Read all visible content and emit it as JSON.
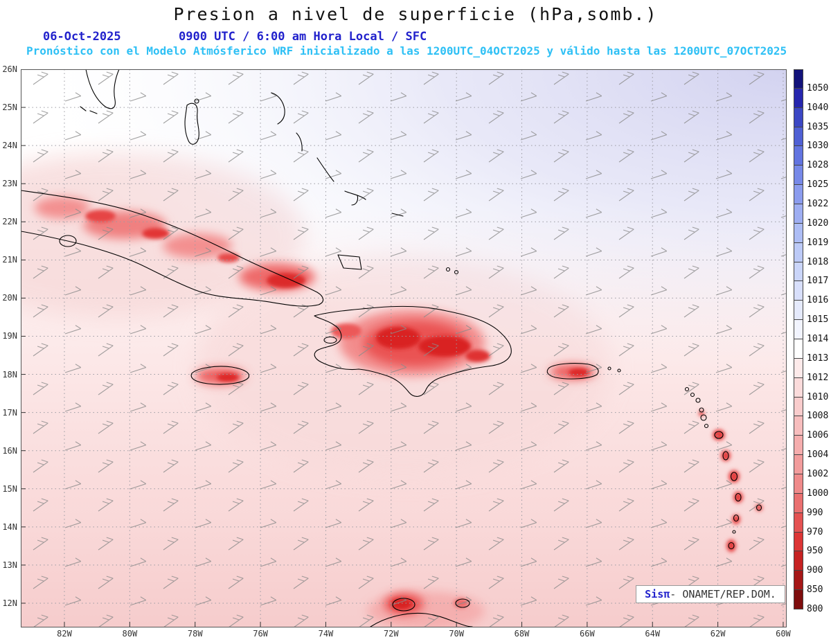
{
  "header": {
    "title": "Presion a nivel de superficie (hPa,somb.)",
    "date": "06-Oct-2025",
    "time": "0900 UTC / 6:00 am Hora Local / SFC",
    "forecast": "Pronóstico con el Modelo Atmósferico WRF inicializado a las 1200UTC_04OCT2025 y válido hasta las  1200UTC_07OCT2025"
  },
  "map": {
    "lat_labels": [
      "26N",
      "25N",
      "24N",
      "23N",
      "22N",
      "21N",
      "20N",
      "19N",
      "18N",
      "17N",
      "16N",
      "15N",
      "14N",
      "13N",
      "12N"
    ],
    "lon_labels": [
      "82W",
      "80W",
      "78W",
      "76W",
      "74W",
      "72W",
      "70W",
      "68W",
      "66W",
      "64W",
      "62W",
      "60W"
    ]
  },
  "colorbar": {
    "levels": [
      "1050",
      "1040",
      "1035",
      "1030",
      "1028",
      "1025",
      "1022",
      "1020",
      "1019",
      "1018",
      "1017",
      "1016",
      "1015",
      "1014",
      "1013",
      "1012",
      "1010",
      "1008",
      "1006",
      "1004",
      "1002",
      "1000",
      "990",
      "970",
      "950",
      "900",
      "850",
      "800"
    ],
    "colors": [
      "#12127a",
      "#2626ae",
      "#3b47c4",
      "#4f60d4",
      "#6274e0",
      "#7789e8",
      "#8b9cee",
      "#9eaef2",
      "#adbdf5",
      "#bccaf7",
      "#cad5f9",
      "#d8dffb",
      "#e5eafc",
      "#f2f4fe",
      "#ffffff",
      "#fdeaea",
      "#fbdbdb",
      "#f9cccc",
      "#f7bdbd",
      "#f5adad",
      "#f29c9c",
      "#ef8a8a",
      "#ea7070",
      "#e45252",
      "#dc3535",
      "#c62222",
      "#a51717",
      "#7e0d0d"
    ]
  },
  "credit": {
    "brand": "Sisπ",
    "text": "- ONAMET/REP.DOM."
  },
  "theme": {
    "accent_blue": "#2222cc",
    "accent_cyan": "#2ec0f5",
    "high_pressure_fill": "#d2d2f0",
    "low_pressure_fill": "#e03030"
  }
}
